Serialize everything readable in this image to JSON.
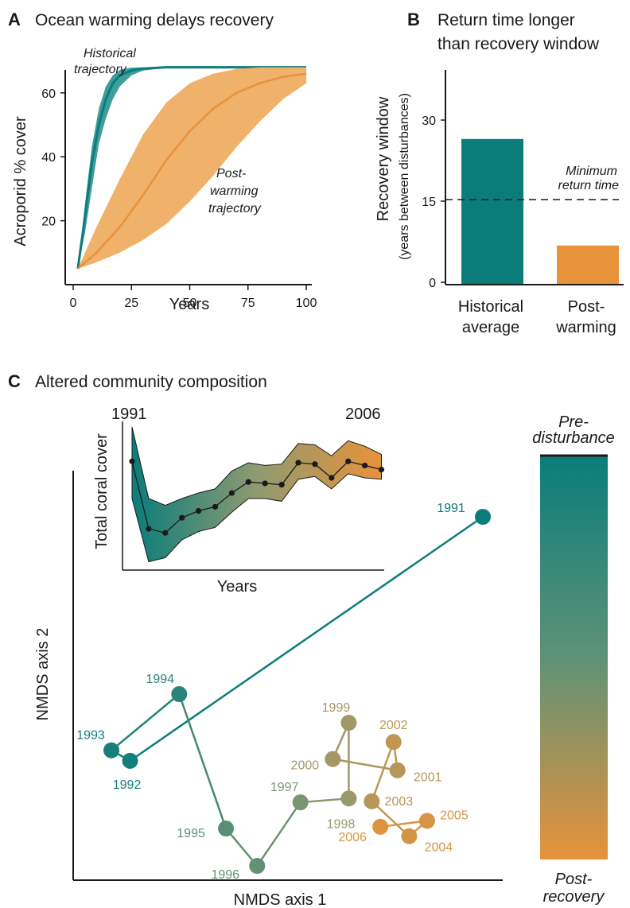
{
  "colors": {
    "teal": "#0a7d7b",
    "teal_band": "#3f9e9c",
    "orange": "#e8923a",
    "orange_band": "#f0b16b",
    "text": "#1a1a1a"
  },
  "panel_a": {
    "letter": "A",
    "title": "Ocean warming delays recovery",
    "ylabel": "Acroporid % cover",
    "xlabel": "Years",
    "xticks": [
      "0",
      "25",
      "50",
      "75",
      "100"
    ],
    "yticks": [
      "20",
      "40",
      "60"
    ],
    "annotation_hist": [
      "Historical",
      "trajectory"
    ],
    "annotation_post": [
      "Post-",
      "warming",
      "trajectory"
    ]
  },
  "panel_b": {
    "letter": "B",
    "title_lines": [
      "Return time longer",
      "than recovery window"
    ],
    "ylabel_lines": [
      "Recovery window",
      "(years between disturbances)"
    ],
    "yticks": [
      "0",
      "15",
      "30"
    ],
    "threshold_label": [
      "Minimum",
      "return time"
    ],
    "cat_labels": [
      [
        "Historical",
        "average"
      ],
      [
        "Post-",
        "warming"
      ]
    ]
  },
  "panel_c": {
    "letter": "C",
    "title": "Altered community composition",
    "xlabel": "NMDS axis 1",
    "ylabel": "NMDS axis 2",
    "inset_xlabel": "Years",
    "inset_ylabel": "Total coral cover",
    "inset_start_label": "1991",
    "inset_end_label": "2006",
    "colorbar_top": [
      "Pre-",
      "disturbance"
    ],
    "colorbar_bottom": [
      "Post-",
      "recovery"
    ]
  },
  "chart_data": [
    {
      "type": "line",
      "panel": "A",
      "title": "Ocean warming delays recovery",
      "xlabel": "Years",
      "ylabel": "Acroporid % cover",
      "xlim": [
        0,
        100
      ],
      "ylim": [
        0,
        69
      ],
      "series": [
        {
          "name": "Historical trajectory",
          "x": [
            2,
            5,
            8,
            11,
            14,
            17,
            20,
            25,
            30,
            40,
            60,
            80,
            100
          ],
          "y": [
            5,
            21,
            38,
            50,
            58,
            63,
            65.5,
            67,
            67.6,
            68,
            68,
            68,
            68
          ],
          "lower": [
            5,
            16,
            30,
            44,
            52,
            58,
            62,
            65.5,
            67,
            67.8,
            68,
            68,
            68
          ],
          "upper": [
            5,
            25,
            43,
            55,
            62,
            65.5,
            67.2,
            67.9,
            68,
            68,
            68,
            68,
            68
          ]
        },
        {
          "name": "Post-warming trajectory",
          "x": [
            2,
            10,
            20,
            30,
            40,
            50,
            60,
            70,
            80,
            90,
            100
          ],
          "y": [
            5,
            10,
            18,
            28,
            39,
            48,
            55,
            60,
            63,
            65,
            66
          ],
          "lower": [
            5,
            7,
            10,
            14,
            19,
            26,
            34,
            43,
            51,
            58,
            63
          ],
          "upper": [
            5,
            18,
            33,
            47,
            57,
            63,
            66,
            67.5,
            68,
            68,
            68
          ]
        }
      ]
    },
    {
      "type": "bar",
      "panel": "B",
      "categories": [
        "Historical average",
        "Post-warming"
      ],
      "values": [
        26.5,
        6.8
      ],
      "ylim": [
        0,
        37
      ],
      "threshold": {
        "label": "Minimum return time",
        "value": 15.3
      }
    },
    {
      "type": "scatter",
      "panel": "C",
      "xlabel": "NMDS axis 1",
      "ylabel": "NMDS axis 2",
      "xlim": [
        0,
        100
      ],
      "ylim": [
        0,
        100
      ],
      "points": [
        {
          "label": "1991",
          "x": 100,
          "y": 100,
          "t": 0.0
        },
        {
          "label": "1992",
          "x": 9.5,
          "y": 30.1,
          "t": 0.03
        },
        {
          "label": "1993",
          "x": 4.7,
          "y": 33.1,
          "t": 0.04
        },
        {
          "label": "1994",
          "x": 22.1,
          "y": 49.2,
          "t": 0.12
        },
        {
          "label": "1995",
          "x": 34.1,
          "y": 10.7,
          "t": 0.3
        },
        {
          "label": "1996",
          "x": 42.1,
          "y": 0,
          "t": 0.34
        },
        {
          "label": "1997",
          "x": 53.2,
          "y": 18.2,
          "t": 0.42
        },
        {
          "label": "1998",
          "x": 65.6,
          "y": 19.3,
          "t": 0.55
        },
        {
          "label": "1999",
          "x": 65.6,
          "y": 41.0,
          "t": 0.6
        },
        {
          "label": "2000",
          "x": 61.5,
          "y": 30.6,
          "t": 0.62
        },
        {
          "label": "2001",
          "x": 78.1,
          "y": 27.4,
          "t": 0.72
        },
        {
          "label": "2002",
          "x": 77.1,
          "y": 35.5,
          "t": 0.78
        },
        {
          "label": "2003",
          "x": 71.5,
          "y": 18.5,
          "t": 0.72
        },
        {
          "label": "2004",
          "x": 81.1,
          "y": 8.5,
          "t": 0.88
        },
        {
          "label": "2005",
          "x": 85.7,
          "y": 12.9,
          "t": 0.9
        },
        {
          "label": "2006",
          "x": 73.7,
          "y": 11.2,
          "t": 0.95
        }
      ],
      "path_order": [
        "1991",
        "1992",
        "1993",
        "1994",
        "1995",
        "1996",
        "1997",
        "1998",
        "1999",
        "2000",
        "2001",
        "2002",
        "2003",
        "2004",
        "2005",
        "2006"
      ]
    },
    {
      "type": "area",
      "panel": "C-inset",
      "xlabel": "Years",
      "ylabel": "Total coral cover",
      "x": [
        1991,
        1992,
        1993,
        1994,
        1995,
        1996,
        1997,
        1998,
        1999,
        2000,
        2001,
        2002,
        2003,
        2004,
        2005,
        2006
      ],
      "y": [
        75,
        26,
        23,
        34,
        39,
        42,
        52,
        60,
        59,
        58,
        74,
        73,
        63,
        75,
        72,
        69
      ],
      "lower": [
        48,
        2,
        5,
        18,
        24,
        27,
        38,
        48,
        48,
        46,
        62,
        64,
        55,
        66,
        63,
        62
      ],
      "upper": [
        100,
        48,
        43,
        48,
        52,
        55,
        68,
        74,
        72,
        73,
        88,
        87,
        79,
        90,
        86,
        80
      ],
      "ylim": [
        0,
        100
      ]
    }
  ]
}
